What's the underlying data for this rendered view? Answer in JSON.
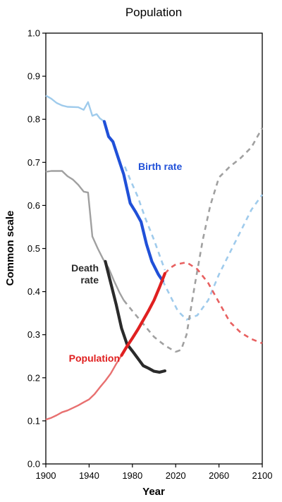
{
  "chart_data": {
    "type": "line",
    "title": "Population",
    "xlabel": "Year",
    "ylabel": "Common scale",
    "xlim": [
      1900,
      2100
    ],
    "ylim": [
      0.0,
      1.0
    ],
    "x_ticks": [
      "1900",
      "1940",
      "1980",
      "2020",
      "2060",
      "2100"
    ],
    "y_ticks": [
      "0.0",
      "0.1",
      "0.2",
      "0.3",
      "0.4",
      "0.5",
      "0.6",
      "0.7",
      "0.8",
      "0.9",
      "1.0"
    ],
    "grid": false,
    "series": [
      {
        "name": "Birth rate",
        "label_lines": [
          "Birth rate"
        ],
        "color": "#2050d8",
        "historical_light_color": "#9fcbec",
        "historical_light": [
          [
            1900,
            0.855
          ],
          [
            1905,
            0.848
          ],
          [
            1910,
            0.838
          ],
          [
            1915,
            0.832
          ],
          [
            1920,
            0.829
          ],
          [
            1930,
            0.828
          ],
          [
            1935,
            0.822
          ],
          [
            1939,
            0.84
          ],
          [
            1943,
            0.808
          ],
          [
            1947,
            0.812
          ],
          [
            1950,
            0.802
          ],
          [
            1954,
            0.795
          ]
        ],
        "observed": [
          [
            1954,
            0.795
          ],
          [
            1958,
            0.76
          ],
          [
            1962,
            0.748
          ],
          [
            1967,
            0.71
          ],
          [
            1972,
            0.672
          ],
          [
            1978,
            0.605
          ],
          [
            1983,
            0.585
          ],
          [
            1988,
            0.562
          ],
          [
            1993,
            0.51
          ],
          [
            1998,
            0.47
          ],
          [
            2004,
            0.44
          ],
          [
            2008,
            0.425
          ]
        ],
        "projected_lead": [
          [
            1973,
            0.69
          ],
          [
            1978,
            0.66
          ],
          [
            1985,
            0.62
          ],
          [
            1992,
            0.57
          ],
          [
            2000,
            0.52
          ],
          [
            2010,
            0.45
          ]
        ],
        "projected": [
          [
            2008,
            0.425
          ],
          [
            2015,
            0.39
          ],
          [
            2022,
            0.355
          ],
          [
            2030,
            0.335
          ],
          [
            2040,
            0.345
          ],
          [
            2050,
            0.38
          ],
          [
            2060,
            0.44
          ],
          [
            2070,
            0.49
          ],
          [
            2080,
            0.54
          ],
          [
            2090,
            0.59
          ],
          [
            2100,
            0.625
          ]
        ]
      },
      {
        "name": "Death rate",
        "label_lines": [
          "Death",
          "rate"
        ],
        "color": "#2a2a2a",
        "historical_light_color": "#a0a0a0",
        "historical_light": [
          [
            1900,
            0.678
          ],
          [
            1905,
            0.68
          ],
          [
            1910,
            0.68
          ],
          [
            1915,
            0.68
          ],
          [
            1920,
            0.668
          ],
          [
            1925,
            0.66
          ],
          [
            1930,
            0.648
          ],
          [
            1935,
            0.632
          ],
          [
            1939,
            0.63
          ],
          [
            1943,
            0.528
          ],
          [
            1948,
            0.5
          ],
          [
            1953,
            0.475
          ],
          [
            1958,
            0.455
          ],
          [
            1963,
            0.425
          ],
          [
            1968,
            0.398
          ],
          [
            1972,
            0.38
          ]
        ],
        "observed": [
          [
            1955,
            0.47
          ],
          [
            1960,
            0.42
          ],
          [
            1965,
            0.37
          ],
          [
            1970,
            0.315
          ],
          [
            1975,
            0.278
          ],
          [
            1980,
            0.262
          ],
          [
            1985,
            0.245
          ],
          [
            1990,
            0.228
          ],
          [
            1995,
            0.222
          ],
          [
            2000,
            0.215
          ],
          [
            2005,
            0.213
          ],
          [
            2010,
            0.216
          ]
        ],
        "projected_lead": [
          [
            1972,
            0.38
          ],
          [
            1980,
            0.355
          ],
          [
            1990,
            0.325
          ],
          [
            2000,
            0.295
          ],
          [
            2010,
            0.275
          ],
          [
            2020,
            0.26
          ]
        ],
        "projected": [
          [
            2020,
            0.26
          ],
          [
            2025,
            0.265
          ],
          [
            2030,
            0.3
          ],
          [
            2038,
            0.42
          ],
          [
            2045,
            0.52
          ],
          [
            2052,
            0.6
          ],
          [
            2060,
            0.665
          ],
          [
            2070,
            0.69
          ],
          [
            2080,
            0.71
          ],
          [
            2090,
            0.735
          ],
          [
            2100,
            0.78
          ]
        ]
      },
      {
        "name": "Population",
        "label_lines": [
          "Population"
        ],
        "color": "#e02020",
        "historical_light_color": "#e87070",
        "historical_light": [
          [
            1900,
            0.103
          ],
          [
            1905,
            0.107
          ],
          [
            1910,
            0.113
          ],
          [
            1915,
            0.12
          ],
          [
            1920,
            0.124
          ],
          [
            1925,
            0.13
          ],
          [
            1930,
            0.136
          ],
          [
            1935,
            0.143
          ],
          [
            1940,
            0.15
          ],
          [
            1945,
            0.162
          ],
          [
            1950,
            0.178
          ],
          [
            1955,
            0.193
          ],
          [
            1960,
            0.21
          ],
          [
            1965,
            0.232
          ],
          [
            1970,
            0.252
          ]
        ],
        "observed": [
          [
            1970,
            0.252
          ],
          [
            1975,
            0.273
          ],
          [
            1980,
            0.292
          ],
          [
            1985,
            0.312
          ],
          [
            1990,
            0.334
          ],
          [
            1995,
            0.356
          ],
          [
            2000,
            0.38
          ],
          [
            2005,
            0.41
          ],
          [
            2010,
            0.442
          ]
        ],
        "projected_lead": [],
        "projected": [
          [
            2010,
            0.442
          ],
          [
            2015,
            0.455
          ],
          [
            2020,
            0.463
          ],
          [
            2030,
            0.468
          ],
          [
            2040,
            0.452
          ],
          [
            2050,
            0.42
          ],
          [
            2060,
            0.375
          ],
          [
            2070,
            0.33
          ],
          [
            2080,
            0.305
          ],
          [
            2090,
            0.29
          ],
          [
            2100,
            0.28
          ]
        ]
      }
    ]
  }
}
